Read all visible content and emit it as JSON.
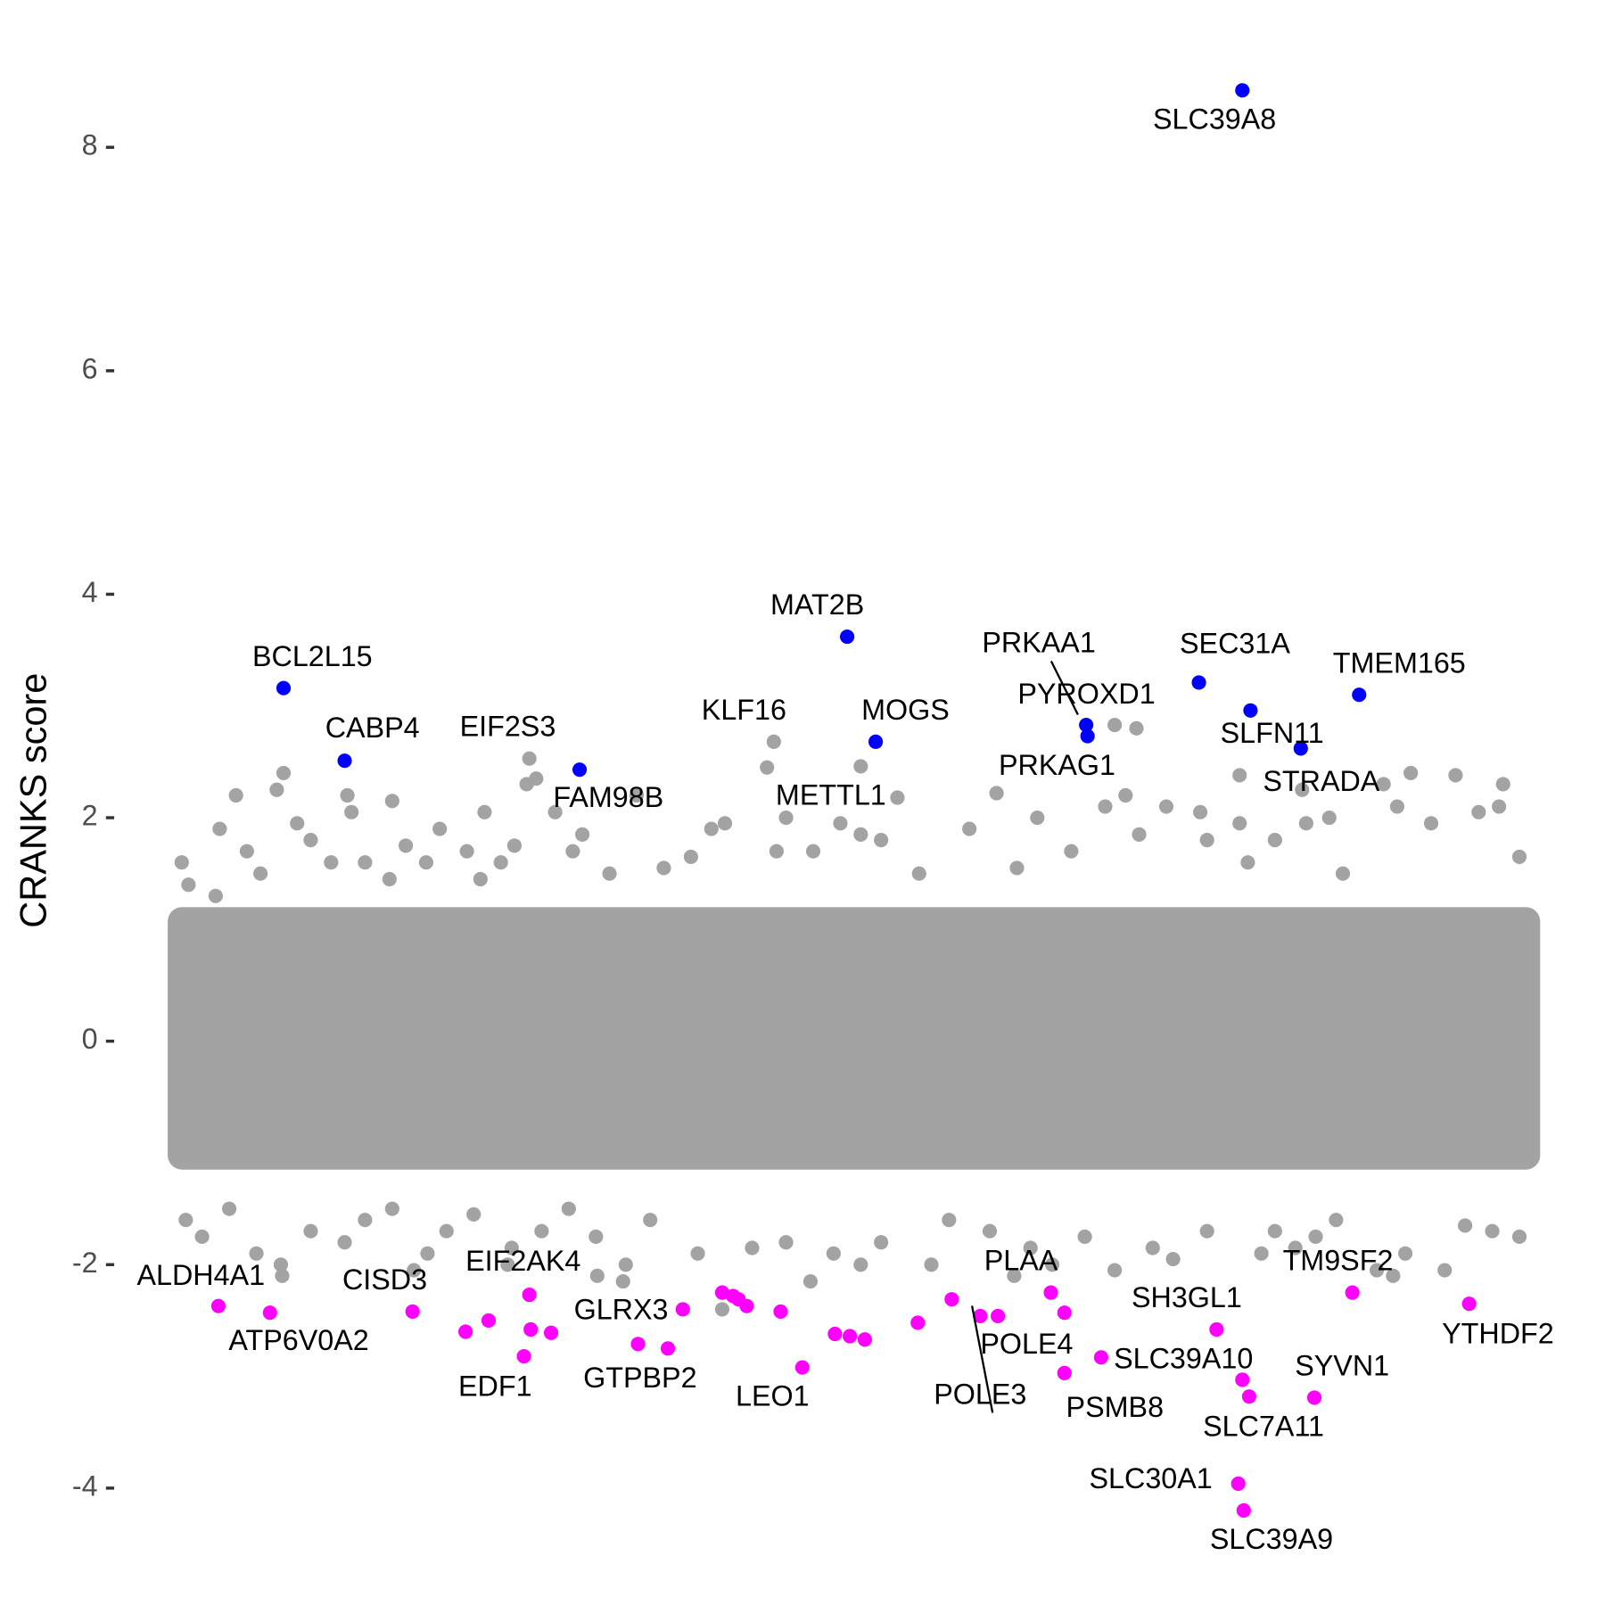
{
  "chart_data": {
    "type": "scatter",
    "y_label": "CRANKS score",
    "xlim": [
      0,
      100
    ],
    "ylim": [
      -5,
      9.3
    ],
    "yticks": [
      -4,
      -2,
      0,
      2,
      4,
      6,
      8
    ],
    "series": [
      {
        "color": "#0000ff",
        "labels": [
          "SLC39A8",
          "BCL2L15",
          "CABP4",
          "FAM98B",
          "MAT2B",
          "MOGS",
          "PRKAA1",
          "PYROXD1",
          "SEC31A",
          "SLFN11",
          "STRADA",
          "TMEM165"
        ],
        "x": [
          78.6,
          8.0,
          12.5,
          29.8,
          49.5,
          51.6,
          67.1,
          67.2,
          75.4,
          79.2,
          82.9,
          87.2
        ],
        "y": [
          8.51,
          3.16,
          2.51,
          2.43,
          3.62,
          2.68,
          2.83,
          2.73,
          3.21,
          2.96,
          2.62,
          3.1
        ]
      },
      {
        "color": "#ff00ff",
        "labels": [
          "ALDH4A1",
          "ATP6V0A2",
          "CISD3",
          null,
          null,
          "EDF1",
          null,
          "EIF2AK4",
          null,
          "GTPBP2",
          null,
          "GLRX3",
          null,
          null,
          null,
          null,
          null,
          "LEO1",
          null,
          null,
          null,
          null,
          null,
          "POLE3",
          "POLE4",
          "PLAA",
          null,
          "PSMB8",
          "SLC39A10",
          "SH3GL1",
          null,
          "SLC7A11",
          "SYVN1",
          "TM9SF2",
          "YTHDF2",
          "SLC30A1",
          "SLC39A9"
        ],
        "x": [
          3.2,
          7.0,
          17.5,
          21.4,
          23.1,
          25.7,
          26.2,
          26.1,
          27.7,
          34.1,
          36.3,
          37.4,
          40.3,
          41.1,
          41.5,
          42.1,
          44.6,
          46.2,
          48.6,
          49.7,
          50.8,
          54.7,
          57.2,
          59.3,
          60.6,
          64.5,
          65.5,
          65.5,
          68.2,
          76.7,
          78.6,
          79.1,
          83.9,
          86.7,
          95.3,
          78.3,
          78.7
        ],
        "y": [
          -2.37,
          -2.43,
          -2.42,
          -2.6,
          -2.5,
          -2.82,
          -2.58,
          -2.27,
          -2.61,
          -2.71,
          -2.75,
          -2.4,
          -2.25,
          -2.28,
          -2.31,
          -2.37,
          -2.42,
          -2.92,
          -2.62,
          -2.64,
          -2.67,
          -2.52,
          -2.31,
          -2.46,
          -2.46,
          -2.25,
          -2.43,
          -2.97,
          -2.83,
          -2.58,
          -3.03,
          -3.18,
          -3.19,
          -2.25,
          -2.35,
          -3.96,
          -4.2
        ]
      },
      {
        "color": "#a3a3a3",
        "labels": [
          "EIF2S3",
          "KLF16",
          "METTL1",
          "PRKAG1"
        ],
        "x": [
          26.1,
          44.1,
          50.5,
          69.2
        ],
        "y": [
          2.53,
          2.68,
          2.46,
          2.83
        ]
      },
      {
        "color": "#a3a3a3",
        "band": [
          -1.15,
          1.2
        ],
        "x": [
          0.5,
          1,
          3,
          4.5,
          3.3,
          5.3,
          6.3,
          7.5,
          8,
          9,
          10,
          11.5,
          12.7,
          13,
          14,
          15.8,
          16,
          17,
          19.5,
          18.5,
          21.5,
          22.5,
          22.8,
          24,
          25,
          26.6,
          25.9,
          28,
          30,
          29.3,
          32,
          34,
          36,
          38,
          39.5,
          40.5,
          43.6,
          44.3,
          45,
          47,
          49,
          50.5,
          53.2,
          52,
          54.8,
          58.5,
          60.5,
          63.5,
          62,
          66,
          68.5,
          70,
          71,
          70.8,
          73,
          75.5,
          76,
          78.4,
          78.4,
          79,
          81,
          83,
          83.3,
          85,
          86,
          89,
          91,
          90,
          92.5,
          94.3,
          96,
          97.5,
          97.8,
          99,
          0.8,
          2,
          4,
          6,
          7.8,
          7.9,
          10,
          12.5,
          14,
          16,
          17.6,
          18.6,
          20,
          22,
          24.5,
          24.8,
          27,
          29,
          31,
          31.1,
          33,
          33.2,
          35,
          38.5,
          40.3,
          42.5,
          45,
          46.8,
          48.5,
          50.5,
          52,
          55.7,
          57,
          60,
          61.8,
          63,
          64.6,
          67,
          69.2,
          72,
          73.5,
          76,
          80,
          81,
          82.5,
          84,
          85.5,
          88.5,
          89.7,
          90.6,
          93.5,
          95,
          97,
          99
        ],
        "y": [
          1.6,
          1.4,
          1.3,
          2.2,
          1.9,
          1.7,
          1.5,
          2.25,
          2.4,
          1.95,
          1.8,
          1.6,
          2.2,
          2.05,
          1.6,
          1.45,
          2.15,
          1.75,
          1.9,
          1.6,
          1.7,
          1.45,
          2.05,
          1.6,
          1.75,
          2.35,
          2.3,
          2.05,
          1.85,
          1.7,
          1.5,
          2.2,
          1.55,
          1.65,
          1.9,
          1.95,
          2.45,
          1.7,
          2.0,
          1.7,
          1.95,
          1.85,
          2.18,
          1.8,
          1.5,
          1.9,
          2.22,
          2.0,
          1.55,
          1.7,
          2.1,
          2.2,
          1.85,
          2.8,
          2.1,
          2.05,
          1.8,
          2.38,
          1.95,
          1.6,
          1.8,
          2.25,
          1.95,
          2.0,
          1.5,
          2.3,
          2.4,
          2.1,
          1.95,
          2.38,
          2.05,
          2.1,
          2.3,
          1.65,
          -1.6,
          -1.75,
          -1.5,
          -1.9,
          -2.0,
          -2.1,
          -1.7,
          -1.8,
          -1.6,
          -1.5,
          -2.05,
          -1.9,
          -1.7,
          -1.55,
          -2.0,
          -1.85,
          -1.7,
          -1.5,
          -1.75,
          -2.1,
          -2.15,
          -2.0,
          -1.6,
          -1.9,
          -2.4,
          -1.85,
          -1.8,
          -2.15,
          -1.9,
          -2.0,
          -1.8,
          -2.0,
          -1.6,
          -1.7,
          -2.1,
          -1.85,
          -2.0,
          -1.75,
          -2.05,
          -1.85,
          -1.95,
          -1.7,
          -1.9,
          -1.7,
          -1.85,
          -1.75,
          -1.6,
          -2.05,
          -2.1,
          -1.9,
          -2.05,
          -1.65,
          -1.7,
          -1.75
        ]
      }
    ]
  }
}
